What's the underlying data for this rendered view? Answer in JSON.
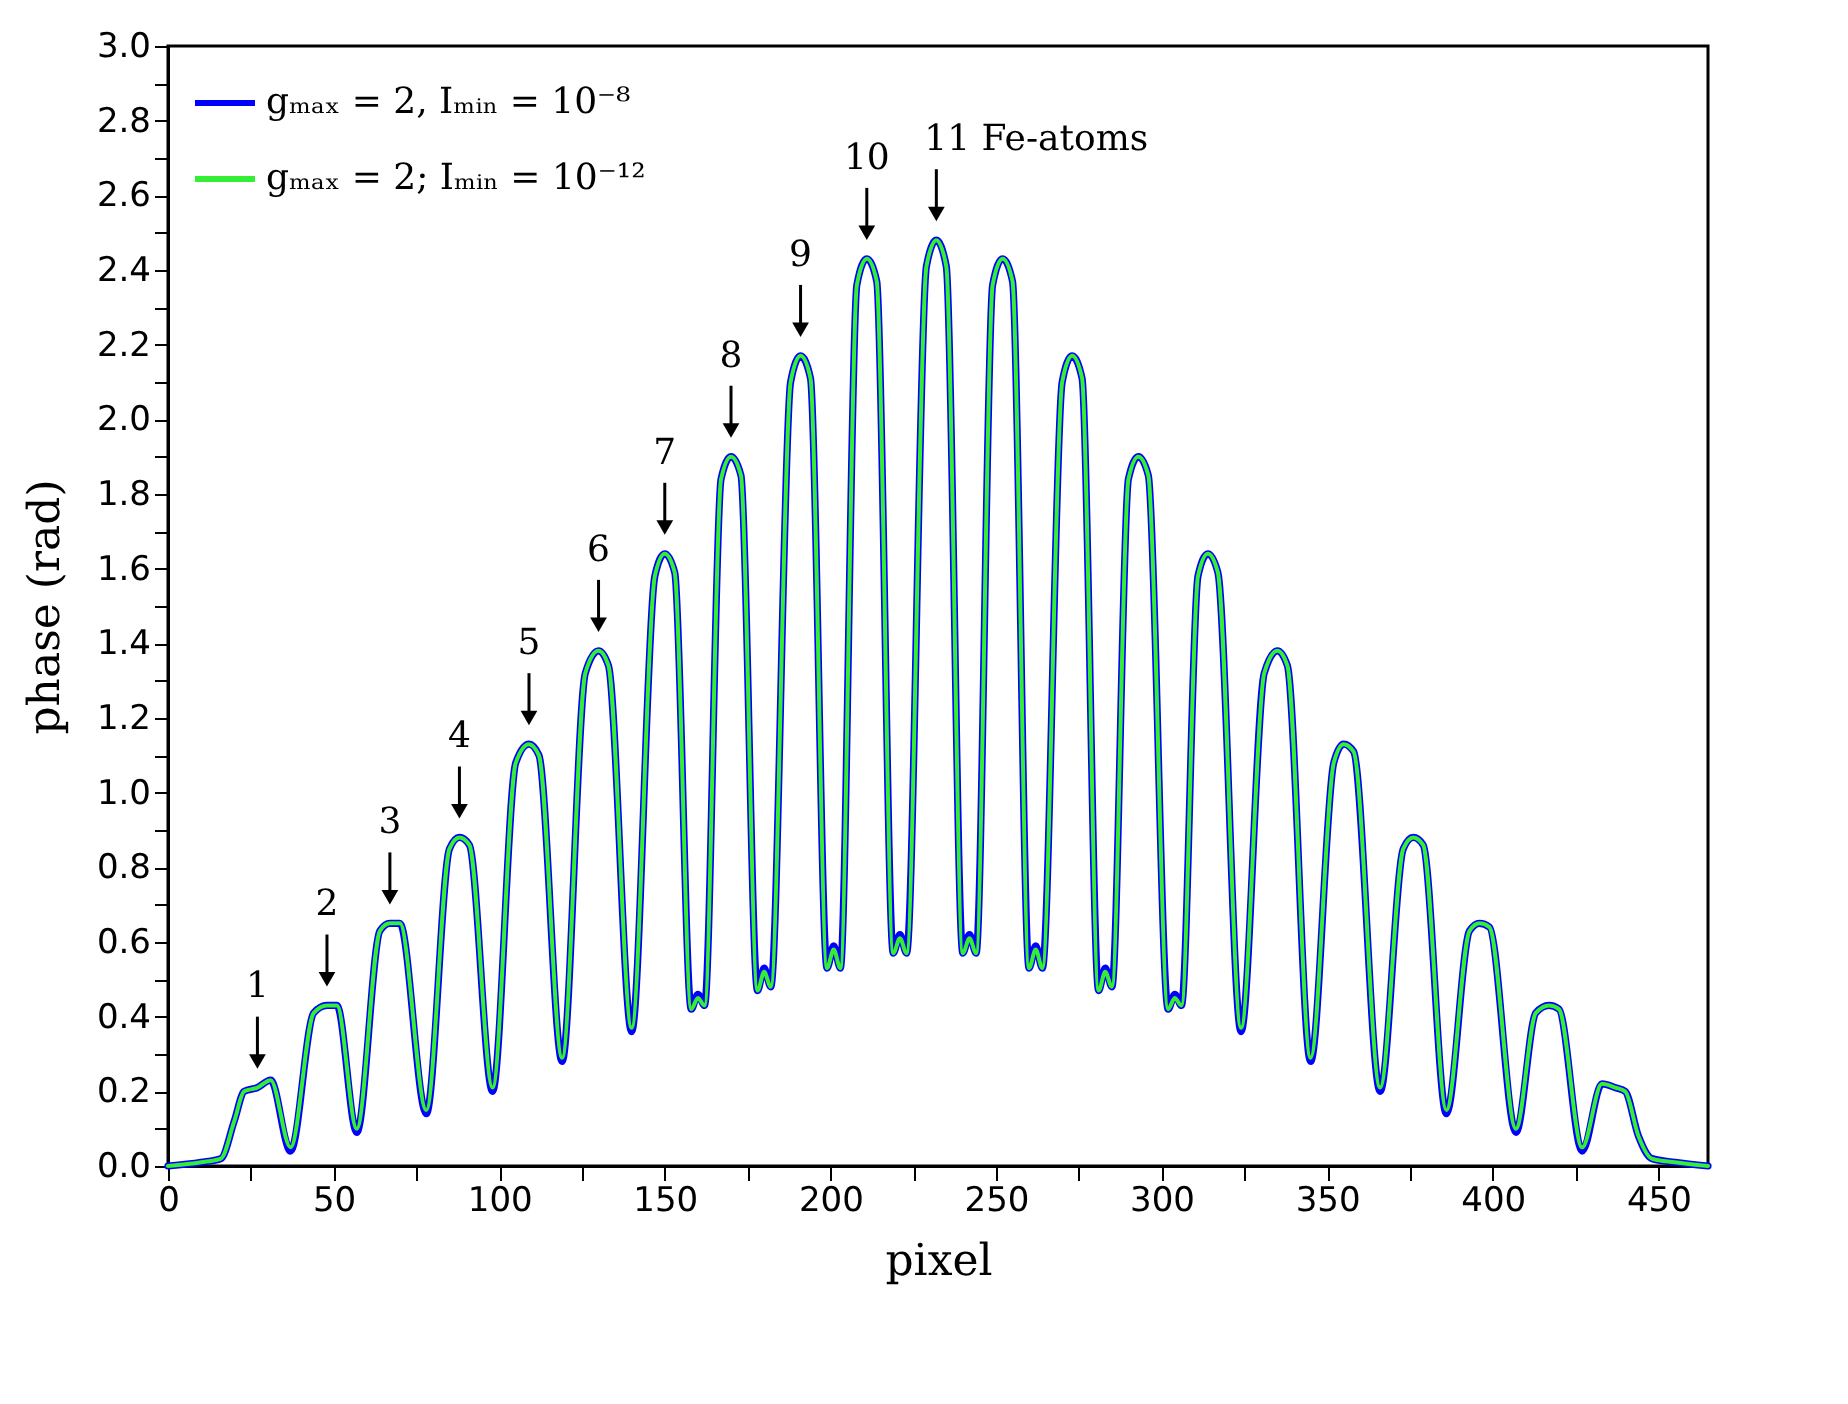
{
  "chart_data": {
    "type": "line",
    "xlabel": "pixel",
    "ylabel": "phase (rad)",
    "legend": "top left",
    "grid": false,
    "line_style": "solid",
    "xlim": [
      0,
      465
    ],
    "xticks": [
      0,
      {
        "value": 25,
        "label": null
      },
      50,
      {
        "value": 75,
        "label": null
      },
      100,
      {
        "value": 125,
        "label": null
      },
      150,
      {
        "value": 175,
        "label": null
      },
      200,
      {
        "value": 225,
        "label": null
      },
      250,
      {
        "value": 275,
        "label": null
      },
      300,
      {
        "value": 325,
        "label": null
      },
      350,
      {
        "value": 375,
        "label": null
      },
      400,
      {
        "value": 425,
        "label": null
      },
      450
    ],
    "ylim": [
      0,
      3
    ],
    "yticks": [
      {
        "value": 0,
        "label": "0.0"
      },
      {
        "value": 0.1,
        "label": null
      },
      0.2,
      {
        "value": 0.3,
        "label": null
      },
      0.4,
      {
        "value": 0.5,
        "label": null
      },
      0.6,
      {
        "value": 0.7,
        "label": null
      },
      0.8,
      {
        "value": 0.9,
        "label": null
      },
      {
        "value": 1,
        "label": "1.0"
      },
      {
        "value": 1.1,
        "label": null
      },
      1.2,
      {
        "value": 1.3,
        "label": null
      },
      1.4,
      {
        "value": 1.5,
        "label": null
      },
      1.6,
      {
        "value": 1.7,
        "label": null
      },
      1.8,
      {
        "value": 1.9,
        "label": null
      },
      {
        "value": 2,
        "label": "2.0"
      },
      {
        "value": 2.1,
        "label": null
      },
      2.2,
      {
        "value": 2.3,
        "label": null
      },
      2.4,
      {
        "value": 2.5,
        "label": null
      },
      2.6,
      {
        "value": 2.7,
        "label": null
      },
      2.8,
      {
        "value": 2.9,
        "label": null
      },
      {
        "value": 3,
        "label": "3.0"
      }
    ],
    "annotations": [
      {
        "text": "1",
        "x": 27,
        "y": 0.21
      },
      {
        "text": "2",
        "x": 48,
        "y": 0.43
      },
      {
        "text": "3",
        "x": 67,
        "y": 0.65
      },
      {
        "text": "4",
        "x": 88,
        "y": 0.88
      },
      {
        "text": "5",
        "x": 109,
        "y": 1.13
      },
      {
        "text": "6",
        "x": 130,
        "y": 1.38
      },
      {
        "text": "7",
        "x": 150,
        "y": 1.64
      },
      {
        "text": "8",
        "x": 170,
        "y": 1.9
      },
      {
        "text": "9",
        "x": 191,
        "y": 2.17
      },
      {
        "text": "10",
        "x": 211,
        "y": 2.43
      },
      {
        "text": "11 Fe-atoms",
        "x": 232,
        "y": 2.48
      }
    ],
    "x": [
      0,
      10,
      16,
      20,
      23,
      27,
      31,
      37,
      44,
      48,
      51,
      57,
      64,
      67,
      70,
      78,
      85,
      88,
      91,
      98,
      105,
      109,
      112,
      119,
      126,
      130,
      133,
      140,
      147,
      150,
      153,
      158,
      160,
      162,
      167,
      170,
      173,
      178,
      180,
      182,
      188,
      191,
      194,
      199,
      201,
      203,
      208,
      211,
      214,
      219,
      221,
      223,
      229,
      232,
      235,
      240,
      242,
      244,
      249,
      252,
      255,
      260,
      262,
      264,
      270,
      273,
      276,
      281,
      283,
      285,
      290,
      293,
      296,
      302,
      304,
      306,
      311,
      314,
      317,
      324,
      331,
      335,
      338,
      345,
      352,
      355,
      358,
      366,
      373,
      376,
      379,
      386,
      393,
      396,
      399,
      407,
      413,
      417,
      420,
      427,
      433,
      437,
      440,
      444,
      448,
      455,
      465
    ],
    "series": [
      {
        "name": "gₘₐₓ = 2, Iₘᵢₙ = 10⁻⁸",
        "color": "#0000ff",
        "values": [
          0,
          0.01,
          0.02,
          0.12,
          0.2,
          0.21,
          0.23,
          0.04,
          0.41,
          0.43,
          0.43,
          0.09,
          0.63,
          0.65,
          0.65,
          0.14,
          0.85,
          0.88,
          0.86,
          0.2,
          1.08,
          1.13,
          1.1,
          0.28,
          1.32,
          1.38,
          1.34,
          0.36,
          1.58,
          1.64,
          1.59,
          0.42,
          0.46,
          0.43,
          1.84,
          1.9,
          1.85,
          0.47,
          0.53,
          0.48,
          2.1,
          2.17,
          2.11,
          0.53,
          0.59,
          0.53,
          2.36,
          2.43,
          2.37,
          0.57,
          0.62,
          0.57,
          2.41,
          2.48,
          2.41,
          0.57,
          0.62,
          0.57,
          2.36,
          2.43,
          2.37,
          0.53,
          0.59,
          0.53,
          2.1,
          2.17,
          2.11,
          0.47,
          0.53,
          0.48,
          1.84,
          1.9,
          1.85,
          0.42,
          0.46,
          0.43,
          1.58,
          1.64,
          1.59,
          0.36,
          1.32,
          1.38,
          1.34,
          0.28,
          1.08,
          1.13,
          1.11,
          0.2,
          0.85,
          0.88,
          0.86,
          0.14,
          0.63,
          0.65,
          0.64,
          0.09,
          0.41,
          0.43,
          0.42,
          0.04,
          0.22,
          0.21,
          0.2,
          0.08,
          0.02,
          0.01,
          0.0
        ]
      },
      {
        "name": "gₘₐₓ = 2; Iₘᵢₙ = 10⁻¹²",
        "color": "#33ee33",
        "values": [
          0,
          0.01,
          0.02,
          0.12,
          0.2,
          0.21,
          0.23,
          0.05,
          0.41,
          0.43,
          0.43,
          0.1,
          0.63,
          0.65,
          0.65,
          0.15,
          0.85,
          0.88,
          0.86,
          0.21,
          1.08,
          1.13,
          1.1,
          0.29,
          1.32,
          1.38,
          1.34,
          0.37,
          1.58,
          1.64,
          1.59,
          0.42,
          0.45,
          0.43,
          1.84,
          1.9,
          1.85,
          0.47,
          0.52,
          0.48,
          2.1,
          2.17,
          2.11,
          0.53,
          0.58,
          0.53,
          2.36,
          2.43,
          2.37,
          0.57,
          0.61,
          0.57,
          2.41,
          2.48,
          2.41,
          0.57,
          0.61,
          0.57,
          2.36,
          2.43,
          2.37,
          0.53,
          0.58,
          0.53,
          2.1,
          2.17,
          2.11,
          0.47,
          0.52,
          0.48,
          1.84,
          1.9,
          1.85,
          0.42,
          0.45,
          0.43,
          1.58,
          1.64,
          1.59,
          0.37,
          1.32,
          1.38,
          1.34,
          0.29,
          1.08,
          1.13,
          1.11,
          0.21,
          0.85,
          0.88,
          0.86,
          0.15,
          0.63,
          0.65,
          0.64,
          0.1,
          0.41,
          0.43,
          0.42,
          0.05,
          0.22,
          0.21,
          0.2,
          0.08,
          0.02,
          0.01,
          0.0
        ]
      }
    ]
  }
}
